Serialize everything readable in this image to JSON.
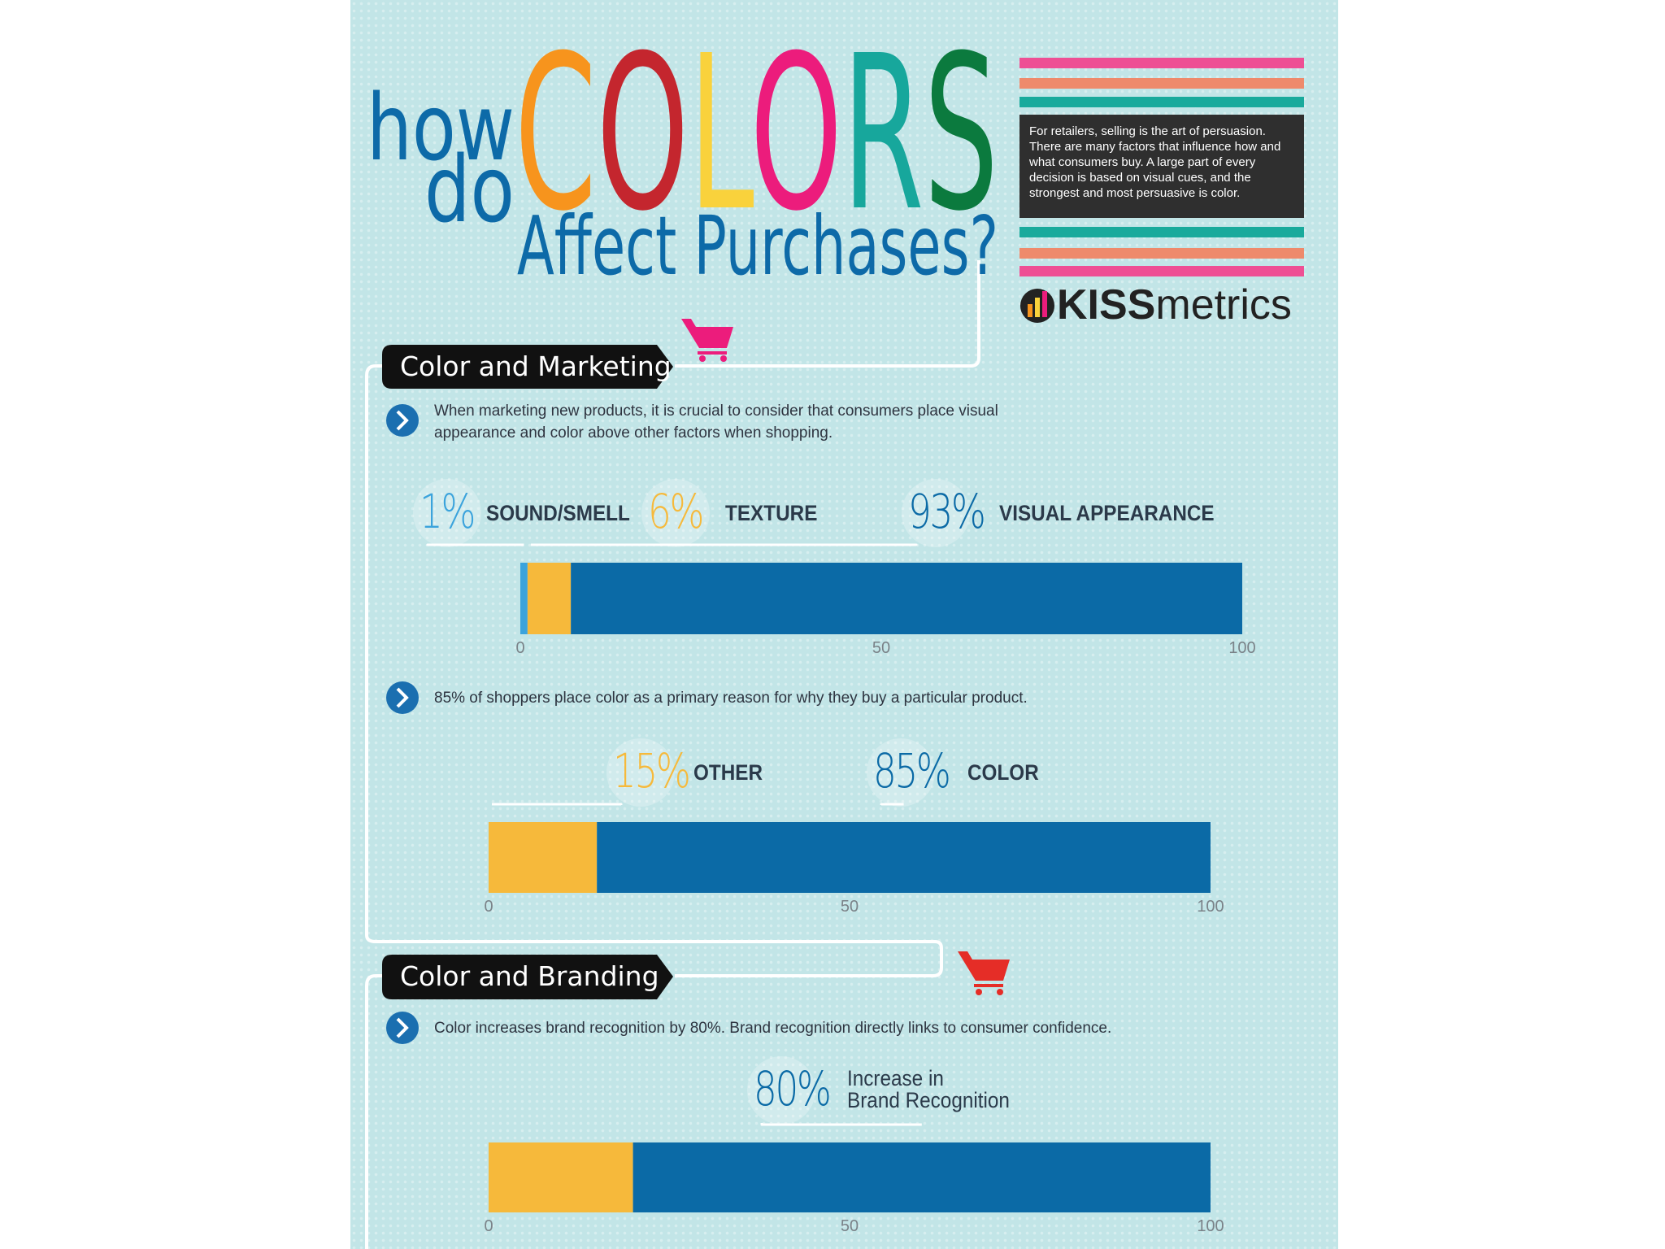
{
  "header": {
    "how": "how",
    "do": "do",
    "colors": "COLORS",
    "colors_palette": [
      "#f7941d",
      "#c4262e",
      "#f9d23c",
      "#ec1c7c",
      "#17a79c",
      "#0b7a3e"
    ],
    "subtitle": "Affect Purchases?",
    "intro": "For retailers, selling is the art of persuasion. There are many factors that influence how and what consumers buy. A large part of every decision is based on visual cues, and the strongest and most persuasive is color.",
    "brand": [
      "KISS",
      "metrics"
    ]
  },
  "sections": [
    {
      "heading": "Color and Marketing",
      "points": [
        "When marketing new products, it is crucial to consider that consumers place visual appearance and color above other factors when shopping.",
        "85% of shoppers place color as a primary reason for why they buy a particular product."
      ]
    },
    {
      "heading": "Color and Branding",
      "points": [
        "Color increases brand recognition by 80%. Brand recognition directly links to consumer confidence."
      ]
    }
  ],
  "chart_data": [
    {
      "type": "bar",
      "orientation": "horizontal",
      "stacked": true,
      "xlim": [
        0,
        100
      ],
      "xticks": [
        0,
        50,
        100
      ],
      "series": [
        {
          "name": "SOUND/SMELL",
          "color": "#3ba3dc",
          "values": [
            1
          ],
          "value_labels": [
            "1%"
          ]
        },
        {
          "name": "TEXTURE",
          "color": "#f6b93b",
          "values": [
            6
          ],
          "value_labels": [
            "6%"
          ]
        },
        {
          "name": "VISUAL APPEARANCE",
          "color": "#0b6aa6",
          "values": [
            93
          ],
          "value_labels": [
            "93%"
          ]
        }
      ]
    },
    {
      "type": "bar",
      "orientation": "horizontal",
      "stacked": true,
      "xlim": [
        0,
        100
      ],
      "xticks": [
        0,
        50,
        100
      ],
      "series": [
        {
          "name": "OTHER",
          "color": "#f6b93b",
          "values": [
            15
          ],
          "value_labels": [
            "15%"
          ]
        },
        {
          "name": "COLOR",
          "color": "#0b6aa6",
          "values": [
            85
          ],
          "value_labels": [
            "85%"
          ]
        }
      ]
    },
    {
      "type": "bar",
      "orientation": "horizontal",
      "stacked": true,
      "xlim": [
        0,
        100
      ],
      "xticks": [
        0,
        50,
        100
      ],
      "series": [
        {
          "color": "#f6b93b",
          "values": [
            20
          ]
        },
        {
          "name": "Increase in Brand Recognition",
          "color": "#0b6aa6",
          "values": [
            80
          ],
          "value_labels": [
            "80%"
          ]
        }
      ]
    }
  ]
}
